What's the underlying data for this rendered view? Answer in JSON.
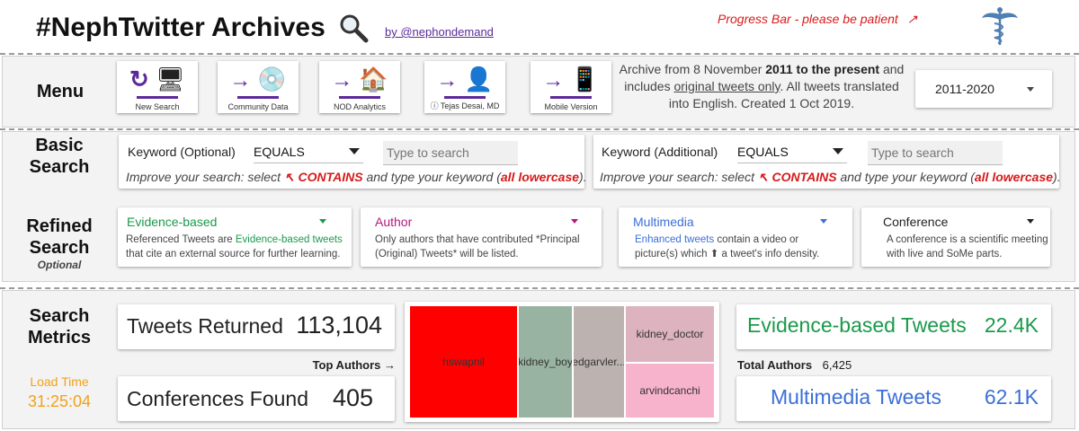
{
  "header": {
    "title": "#NephTwitter Archives",
    "byline": "by @nephondemand",
    "progress_text": "Progress Bar - please be patient",
    "progress_arrow": "↗"
  },
  "menu": {
    "label": "Menu",
    "buttons": [
      {
        "label": "New Search",
        "icon": "refresh-desktop-icon"
      },
      {
        "label": "Community Data",
        "icon": "cd-disc-icon"
      },
      {
        "label": "NOD Analytics",
        "icon": "house-icon"
      },
      {
        "label": "ⓘ Tejas Desai, MD",
        "icon": "person-icon"
      },
      {
        "label": "Mobile Version",
        "icon": "mobile-phone-icon"
      }
    ],
    "archive_text_1": "Archive from 8 November ",
    "archive_text_bold": "2011 to the present",
    "archive_text_2": " and includes ",
    "archive_text_link": "original tweets only",
    "archive_text_3": ". All tweets translated into English.  Created 1 Oct 2019.",
    "year_select": "2011-2020"
  },
  "basic_search": {
    "label_line1": "Basic",
    "label_line2": "Search",
    "left": {
      "label": "Keyword (Optional)",
      "operator": "EQUALS",
      "placeholder": "Type to search"
    },
    "right": {
      "label": "Keyword (Additional)",
      "operator": "EQUALS",
      "placeholder": "Type to search"
    },
    "hint_prefix": "Improve your search:  select ",
    "hint_symbol": "↖",
    "hint_contains": "CONTAINS",
    "hint_mid": " and type your keyword (",
    "hint_lowercase": "all lowercase",
    "hint_end": ")."
  },
  "refined_search": {
    "label_line1": "Refined",
    "label_line2": "Search",
    "label_sub": "Optional",
    "filters": [
      {
        "title": "Evidence-based",
        "color": "#1a9a4a",
        "desc_pre": "Referenced Tweets are ",
        "desc_hl": "Evidence-based tweets",
        "desc_post": " that cite an external source for further learning."
      },
      {
        "title": "Author",
        "color": "#b5177f",
        "desc_pre": "Only authors that have contributed *Principal (Original) Tweets* will be listed.",
        "desc_hl": "",
        "desc_post": ""
      },
      {
        "title": "Multimedia",
        "color": "#3b6fd8",
        "desc_pre": "",
        "desc_hl": "Enhanced tweets",
        "desc_post": " contain a video or picture(s) which ⬆ a tweet's info density."
      },
      {
        "title": "Conference",
        "color": "#222222",
        "desc_pre": "A conference is a scientific meeting with live and SoMe parts.",
        "desc_hl": "",
        "desc_post": ""
      }
    ]
  },
  "metrics": {
    "label_line1": "Search",
    "label_line2": "Metrics",
    "load_time_label": "Load Time",
    "load_time_value": "31:25:04",
    "tweets_returned_label": "Tweets Returned",
    "tweets_returned_value": "113,104",
    "conferences_label": "Conferences Found",
    "conferences_value": "405",
    "top_authors_label": "Top Authors →",
    "total_authors_label": "Total Authors",
    "total_authors_value": "6,425",
    "evidence_label": "Evidence-based Tweets",
    "evidence_value": "22.4K",
    "multimedia_label": "Multimedia Tweets",
    "multimedia_value": "62.1K",
    "colors": {
      "evidence": "#1a9a4a",
      "multimedia": "#3b6fd8",
      "load_time": "#f0a21a"
    }
  },
  "treemap": {
    "authors": [
      {
        "name": "hswapnil",
        "color": "#ff0000"
      },
      {
        "name": "kidney_boy",
        "color": "#98b3a1"
      },
      {
        "name": "edgarvler...",
        "color": "#bcb3b0"
      },
      {
        "name": "kidney_doctor",
        "color": "#dcb3bf"
      },
      {
        "name": "arvindcanchi",
        "color": "#f7b3cc"
      }
    ]
  }
}
